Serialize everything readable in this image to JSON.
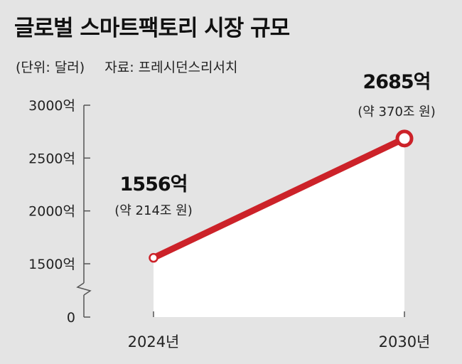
{
  "chart_data": {
    "type": "line",
    "title": "글로벌 스마트팩토리 시장 규모",
    "unit_note": "(단위: 달러)",
    "source": "자료: 프레시던스리서치",
    "categories": [
      "2024년",
      "2030년"
    ],
    "series": [
      {
        "values": [
          1556,
          2685
        ],
        "labels": [
          "1556억",
          "2685억"
        ],
        "notes": [
          "(약 214조 원)",
          "(약 370조 원)"
        ]
      }
    ],
    "yticks": [
      {
        "value": 0,
        "label": "0"
      },
      {
        "value": 1500,
        "label": "1500억"
      },
      {
        "value": 2000,
        "label": "2000억"
      },
      {
        "value": 2500,
        "label": "2500억"
      },
      {
        "value": 3000,
        "label": "3000억"
      }
    ],
    "ylim": [
      1500,
      3000
    ],
    "axis_break": true,
    "colors": {
      "line": "#cc2229",
      "area": "#ffffff",
      "background": "#e4e4e4",
      "axis": "#555555"
    }
  }
}
